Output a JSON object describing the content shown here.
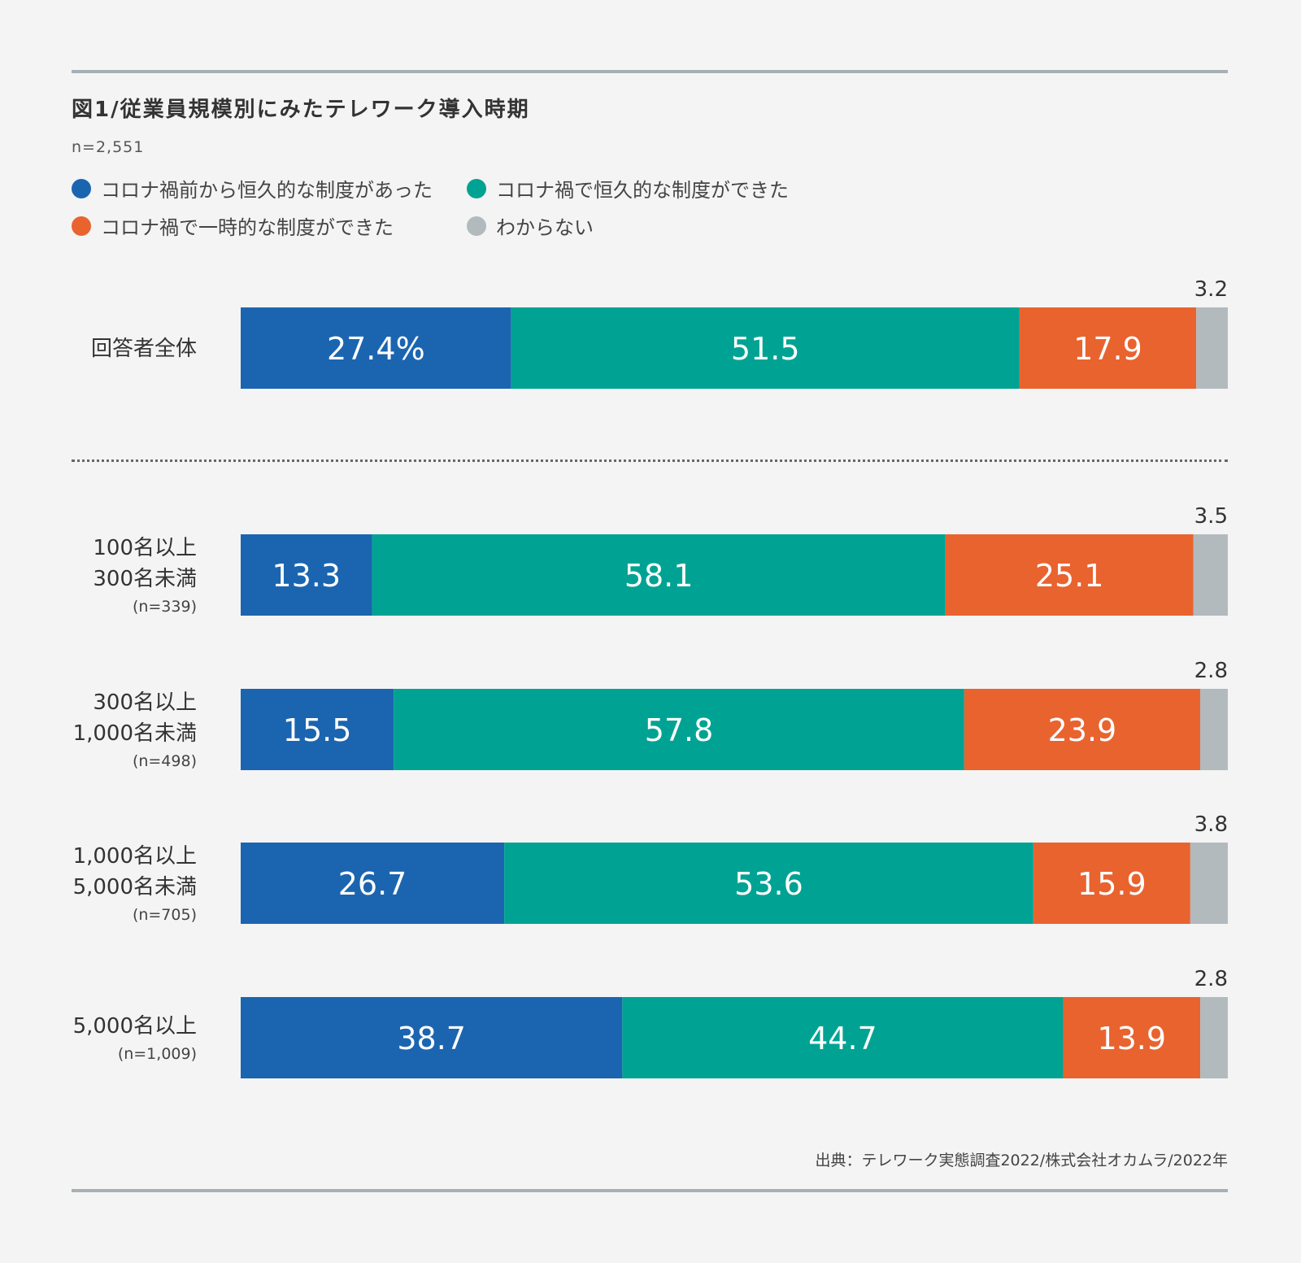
{
  "title": "図1/従業員規模別にみたテレワーク導入時期",
  "sample": "n=2,551",
  "legend": [
    {
      "label": "コロナ禍前から恒久的な制度があった",
      "color": "#1b65b0"
    },
    {
      "label": "コロナ禍で恒久的な制度ができた",
      "color": "#00a393"
    },
    {
      "label": "コロナ禍で一時的な制度ができた",
      "color": "#e9632f"
    },
    {
      "label": "わからない",
      "color": "#b2babe"
    }
  ],
  "source": "出典：テレワーク実態調査2022/株式会社オカムラ/2022年",
  "chart_data": {
    "type": "bar",
    "orientation": "horizontal",
    "stacked": true,
    "unit": "%",
    "xlim": [
      0,
      100
    ],
    "series_names": [
      "コロナ禍前から恒久的な制度があった",
      "コロナ禍で恒久的な制度ができた",
      "コロナ禍で一時的な制度ができた",
      "わからない"
    ],
    "rows": [
      {
        "label_lines": [
          "回答者全体"
        ],
        "sub": "",
        "values": [
          27.4,
          51.5,
          17.9,
          3.2
        ],
        "value_labels": [
          "27.4%",
          "51.5",
          "17.9",
          "3.2"
        ]
      },
      {
        "label_lines": [
          "100名以上",
          "300名未満"
        ],
        "sub": "(n=339)",
        "values": [
          13.3,
          58.1,
          25.1,
          3.5
        ],
        "value_labels": [
          "13.3",
          "58.1",
          "25.1",
          "3.5"
        ]
      },
      {
        "label_lines": [
          "300名以上",
          "1,000名未満"
        ],
        "sub": "(n=498)",
        "values": [
          15.5,
          57.8,
          23.9,
          2.8
        ],
        "value_labels": [
          "15.5",
          "57.8",
          "23.9",
          "2.8"
        ]
      },
      {
        "label_lines": [
          "1,000名以上",
          "5,000名未満"
        ],
        "sub": "(n=705)",
        "values": [
          26.7,
          53.6,
          15.9,
          3.8
        ],
        "value_labels": [
          "26.7",
          "53.6",
          "15.9",
          "3.8"
        ]
      },
      {
        "label_lines": [
          "5,000名以上"
        ],
        "sub": "(n=1,009)",
        "values": [
          38.7,
          44.7,
          13.9,
          2.8
        ],
        "value_labels": [
          "38.7",
          "44.7",
          "13.9",
          "2.8"
        ]
      }
    ]
  }
}
